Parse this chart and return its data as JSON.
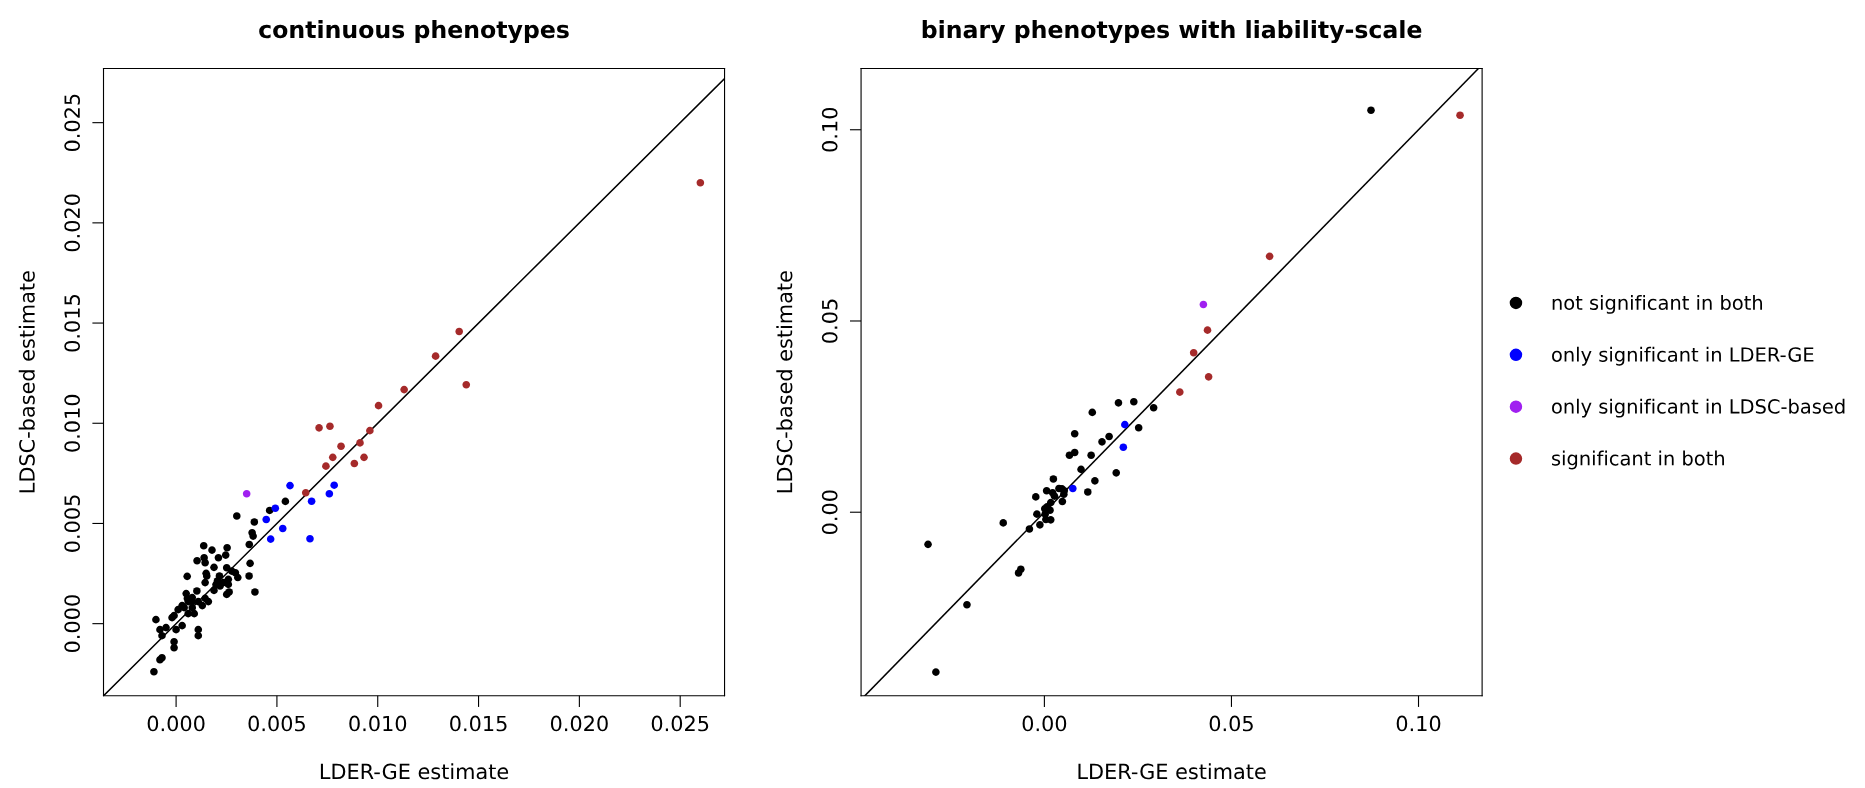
{
  "chart_data": [
    {
      "type": "scatter",
      "title": "continuous phenotypes",
      "xlabel": "LDER-GE estimate",
      "ylabel": "LDSC-based estimate",
      "xlim": [
        -0.0036,
        0.0272
      ],
      "ylim": [
        -0.0036,
        0.0277
      ],
      "xticks": [
        {
          "value": 0,
          "label": "0.000"
        },
        {
          "value": 0.005,
          "label": "0.005"
        },
        {
          "value": 0.01,
          "label": "0.010"
        },
        {
          "value": 0.015,
          "label": "0.015"
        },
        {
          "value": 0.02,
          "label": "0.020"
        },
        {
          "value": 0.025,
          "label": "0.025"
        }
      ],
      "yticks": [
        {
          "value": 0,
          "label": "0.000"
        },
        {
          "value": 0.005,
          "label": "0.005"
        },
        {
          "value": 0.01,
          "label": "0.010"
        },
        {
          "value": 0.015,
          "label": "0.015"
        },
        {
          "value": 0.02,
          "label": "0.020"
        },
        {
          "value": 0.025,
          "label": "0.025"
        }
      ],
      "marker": "circle",
      "legend": false,
      "series": [
        {
          "type": "line",
          "marker": "none",
          "color": "#000000",
          "x": [
            -0.0036,
            0.0272
          ],
          "values": [
            -0.0036,
            0.0272
          ]
        },
        {
          "color": "#000000",
          "x": [
            0.00464,
            0.00542,
            0.00301,
            0.00388,
            0.00377,
            0.00382,
            0.00363,
            0.00137,
            0.00178,
            0.00253,
            0.00246,
            0.00104,
            0.00139,
            0.00144,
            0.0021,
            0.00367,
            0.00188,
            0.00251,
            0.00276,
            0.00294,
            0.00149,
            0.00152,
            0.00055,
            0.00215,
            0.00306,
            0.00362,
            0.00259,
            0.00205,
            0.00144,
            0.00234,
            0.00198,
            0.00218,
            0.00259,
            0.00103,
            0.00188,
            0.00391,
            0.00251,
            0.00263,
            0.00056,
            0.00144,
            -0.0007,
            -0.001,
            -0.0008,
            -0.0005,
            -0.0002,
            -0.0001,
            0.0001,
            0.0003,
            0.0004,
            0.0006,
            0.0,
            -0.0001,
            -0.0001,
            0.0003,
            0.0006,
            0.0008,
            0.0009,
            0.0011,
            0.0011,
            0.0013,
            0.0016,
            0.0008,
            0.0005,
            0.0008,
            0.0011,
            -0.0011,
            -0.0008,
            -0.0007
          ],
          "values": [
            0.00565,
            0.0061,
            0.00537,
            0.00507,
            0.00454,
            0.00437,
            0.00395,
            0.00389,
            0.00367,
            0.00379,
            0.00342,
            0.00314,
            0.00329,
            0.00304,
            0.00329,
            0.00301,
            0.00281,
            0.00279,
            0.00262,
            0.00254,
            0.00251,
            0.00238,
            0.00236,
            0.00238,
            0.0023,
            0.00238,
            0.00221,
            0.00213,
            0.00205,
            0.00205,
            0.00195,
            0.00188,
            0.00196,
            0.00163,
            0.00166,
            0.00158,
            0.00146,
            0.00158,
            0.00126,
            0.00126,
            -0.0006,
            0.0002,
            -0.0003,
            -0.0002,
            0.0003,
            0.0004,
            0.0007,
            0.0009,
            0.0008,
            0.0011,
            -0.0003,
            -0.0009,
            -0.0012,
            -0.0001,
            0.0005,
            0.0008,
            0.0005,
            -0.0003,
            -0.0006,
            0.0009,
            0.0011,
            0.0011,
            0.0015,
            0.0013,
            0.0011,
            -0.0024,
            -0.0018,
            -0.0017
          ]
        },
        {
          "color": "#0000ff",
          "x": [
            0.00565,
            0.00492,
            0.00447,
            0.00529,
            0.00469,
            0.00664,
            0.00672,
            0.0076,
            0.00784
          ],
          "values": [
            0.00689,
            0.00576,
            0.0052,
            0.00475,
            0.00422,
            0.00424,
            0.00611,
            0.00648,
            0.00691
          ]
        },
        {
          "color": "#a020f0",
          "x": [
            0.0035
          ],
          "values": [
            0.00648
          ]
        },
        {
          "color": "#a52a2a",
          "x": [
            0.026,
            0.01404,
            0.01287,
            0.01439,
            0.01131,
            0.01004,
            0.00709,
            0.00763,
            0.00961,
            0.00818,
            0.00912,
            0.00777,
            0.00932,
            0.00743,
            0.00884,
            0.00643
          ],
          "values": [
            0.022,
            0.01458,
            0.01335,
            0.01192,
            0.01168,
            0.01088,
            0.00977,
            0.00985,
            0.00963,
            0.00885,
            0.00902,
            0.0083,
            0.0083,
            0.00786,
            0.00799,
            0.00653
          ]
        }
      ]
    },
    {
      "type": "scatter",
      "title": "binary phenotypes with liability-scale",
      "xlabel": "LDER-GE estimate",
      "ylabel": "LDSC-based estimate",
      "xlim": [
        -0.049,
        0.117
      ],
      "ylim": [
        -0.048,
        0.116
      ],
      "xticks": [
        {
          "value": 0,
          "label": "0.00"
        },
        {
          "value": 0.05,
          "label": "0.05"
        },
        {
          "value": 0.1,
          "label": "0.10"
        }
      ],
      "yticks": [
        {
          "value": 0,
          "label": "0.00"
        },
        {
          "value": 0.05,
          "label": "0.05"
        },
        {
          "value": 0.1,
          "label": "0.10"
        }
      ],
      "marker": "circle",
      "legend": "right",
      "series": [
        {
          "type": "line",
          "marker": "none",
          "color": "#000000",
          "x": [
            -0.048,
            0.116
          ],
          "values": [
            -0.048,
            0.116
          ]
        },
        {
          "name": "not significant in both",
          "color": "#000000",
          "x": [
            0.0873,
            -0.029,
            -0.0311,
            -0.0207,
            -0.011,
            -0.0069,
            -0.0063,
            -0.004,
            -0.002,
            -0.0023,
            -0.0012,
            0.0001,
            0.0002,
            0.0004,
            0.0006,
            0.0007,
            0.0015,
            0.0017,
            0.0017,
            0.0022,
            0.0024,
            0.0027,
            0.0039,
            0.0047,
            0.0048,
            0.0052,
            0.0053,
            0.0067,
            0.0081,
            0.0081,
            0.0098,
            0.0116,
            0.0125,
            0.0128,
            0.0135,
            0.0154,
            0.0173,
            0.0192,
            0.0198,
            0.0239,
            0.0252,
            0.0292
          ],
          "values": [
            0.1051,
            -0.0418,
            -0.0084,
            -0.0242,
            -0.0028,
            -0.0159,
            -0.0149,
            -0.0044,
            -0.0005,
            0.004,
            -0.0033,
            0.0009,
            -0.0005,
            -0.0019,
            0.0056,
            0.0014,
            0.0005,
            -0.002,
            0.0025,
            0.0051,
            0.0087,
            0.0042,
            0.0062,
            0.0061,
            0.0028,
            0.0047,
            0.0056,
            0.0149,
            0.0156,
            0.0205,
            0.0112,
            0.0053,
            0.0149,
            0.0261,
            0.0082,
            0.0184,
            0.0198,
            0.0103,
            0.0286,
            0.0289,
            0.0221,
            0.0273
          ]
        },
        {
          "name": "only significant in LDER-GE",
          "color": "#0000ff",
          "x": [
            0.0215,
            0.0211,
            0.0076
          ],
          "values": [
            0.0229,
            0.017,
            0.0062
          ]
        },
        {
          "name": "only significant in LDSC-based",
          "color": "#a020f0",
          "x": [
            0.0425
          ],
          "values": [
            0.0543
          ]
        },
        {
          "name": "significant in both",
          "color": "#a52a2a",
          "x": [
            0.0436,
            0.0399,
            0.0439,
            0.0362,
            0.0602,
            0.1111
          ],
          "values": [
            0.0476,
            0.0417,
            0.0354,
            0.0314,
            0.0669,
            0.1038
          ]
        }
      ]
    }
  ]
}
